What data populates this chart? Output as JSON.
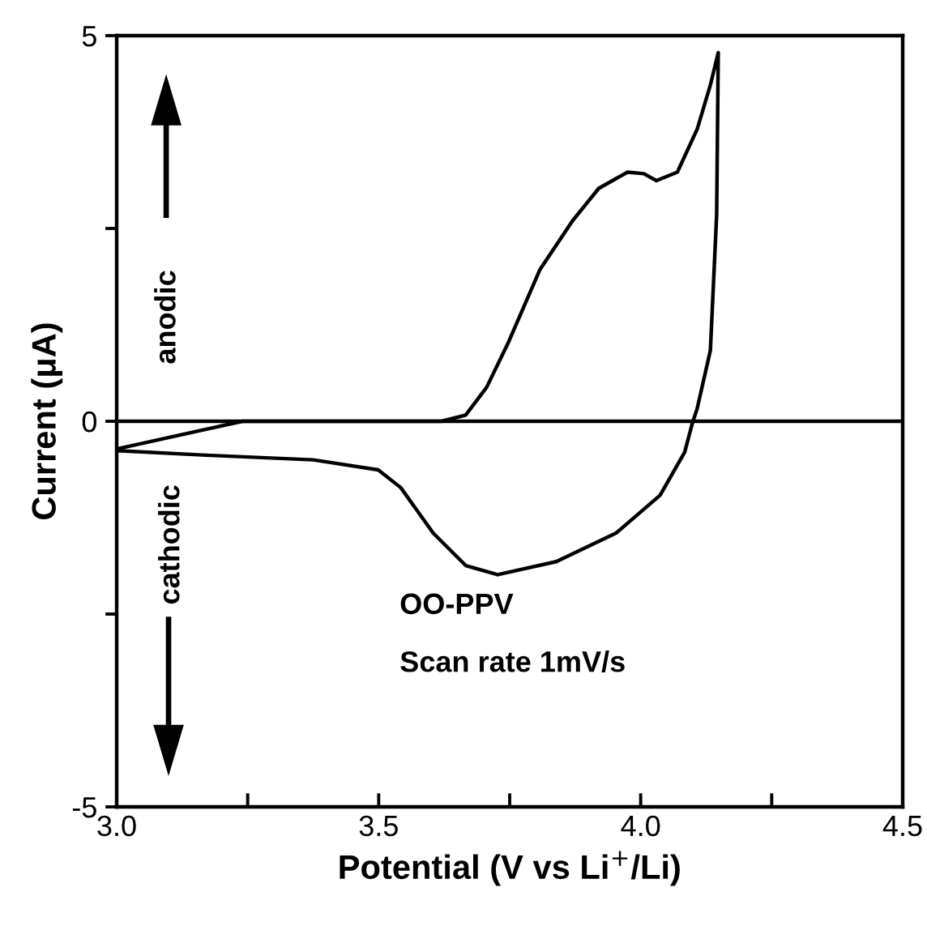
{
  "chart_data": {
    "type": "line",
    "xlabel": "Potential (V vs Li$^{+}$/Li)",
    "ylabel": "Current (μA)",
    "series": [
      {
        "color": "#000000",
        "x": [
          3.0,
          3.24,
          3.62,
          3.666,
          3.706,
          3.746,
          3.808,
          3.87,
          3.92,
          3.975,
          4.006,
          4.03,
          4.07,
          4.108,
          4.133,
          4.148,
          4.145,
          4.133,
          4.108,
          4.098,
          4.084,
          4.037,
          3.953,
          3.839,
          3.727,
          3.666,
          3.604,
          3.542,
          3.499,
          3.375,
          3.17,
          3.0
        ],
        "values": [
          -0.36,
          0.0,
          0.0,
          0.08,
          0.44,
          1.0,
          1.97,
          2.6,
          3.02,
          3.23,
          3.21,
          3.12,
          3.23,
          3.79,
          4.36,
          4.78,
          2.68,
          0.92,
          0.17,
          -0.04,
          -0.4,
          -0.96,
          -1.45,
          -1.82,
          -1.99,
          -1.87,
          -1.45,
          -0.86,
          -0.63,
          -0.5,
          -0.44,
          -0.38
        ]
      }
    ],
    "xlim": [
      3.0,
      4.5
    ],
    "xticks": [
      {
        "value": 3,
        "label": "3.0"
      },
      {
        "value": 3.25,
        "label": null
      },
      3.5,
      {
        "value": 3.75,
        "label": null
      },
      {
        "value": 4,
        "label": "4.0"
      },
      {
        "value": 4.25,
        "label": null
      },
      4.5
    ],
    "ylim": [
      -5,
      5
    ],
    "yticks": [
      -5,
      {
        "value": -2.5,
        "label": null
      },
      0,
      {
        "value": 2.5,
        "label": null
      },
      5
    ],
    "ref_lines": [
      {
        "axis": "y",
        "value": 0,
        "color": "#000000"
      }
    ],
    "annotations": [
      "anodic",
      "cathodic",
      "OO-PPV",
      "Scan rate 1mV/s"
    ],
    "grid": false,
    "legend": false,
    "marker": "none",
    "line_style": "solid"
  }
}
